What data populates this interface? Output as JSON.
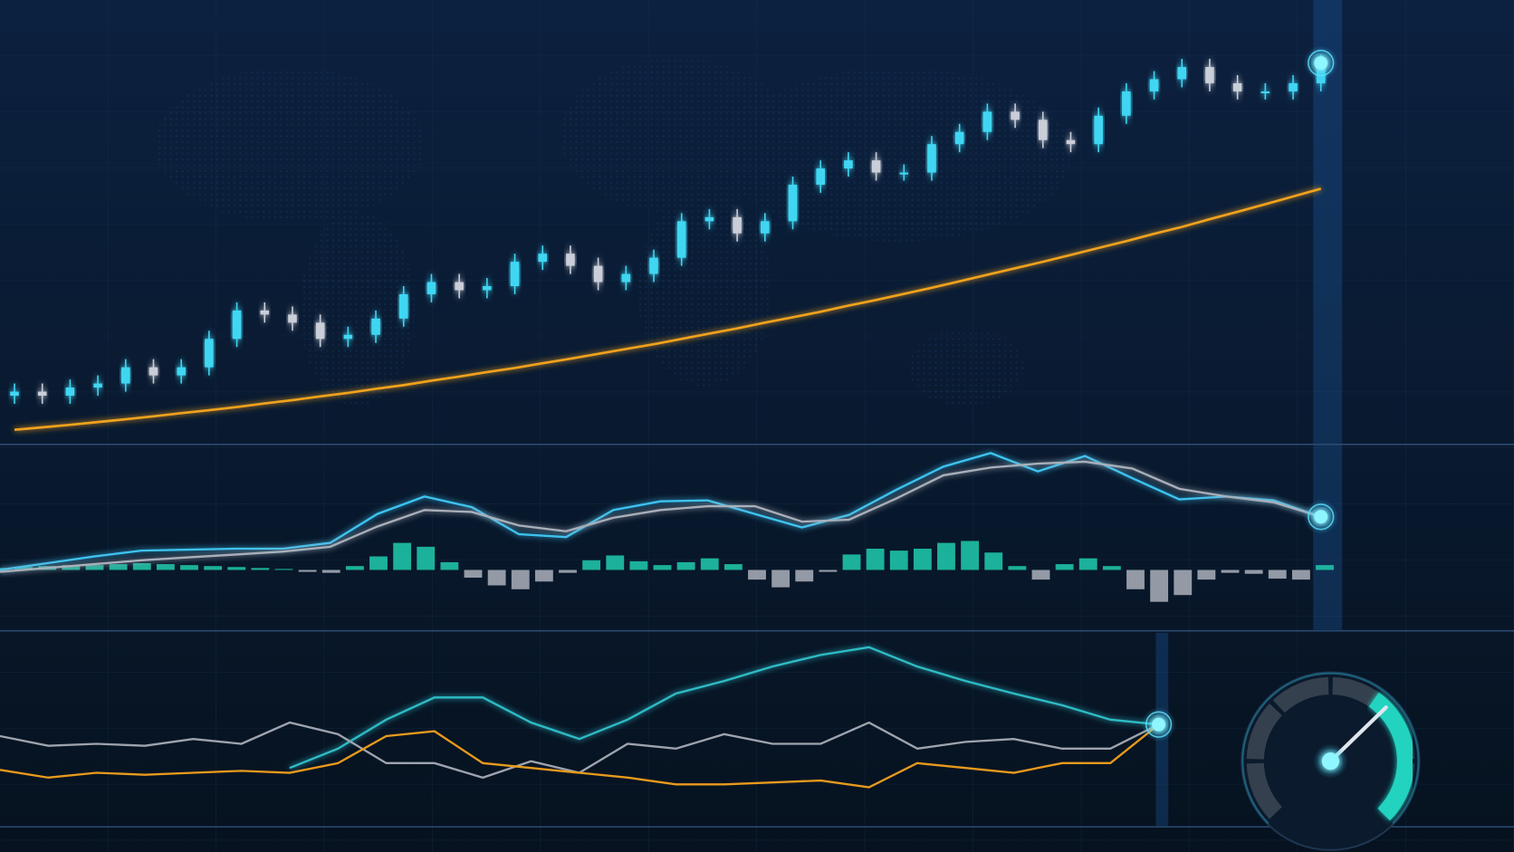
{
  "chart_data": [
    {
      "type": "candlestick",
      "ylim": [
        0,
        100
      ],
      "up_color": "#3fd6f2",
      "down_color": "#c9ced8",
      "open": [
        12,
        13,
        12,
        14,
        15,
        19,
        17,
        19,
        26,
        33,
        32,
        30,
        26,
        27,
        31,
        37,
        40,
        38,
        39,
        45,
        47,
        44,
        40,
        42,
        46,
        55,
        56,
        52,
        55,
        64,
        68,
        70,
        67,
        67,
        74,
        77,
        82,
        80,
        75,
        74,
        81,
        87,
        90,
        93,
        89,
        87,
        87,
        89
      ],
      "high": [
        15,
        15,
        16,
        17,
        21,
        21,
        21,
        28,
        35,
        35,
        34,
        32,
        29,
        33,
        39,
        42,
        42,
        41,
        47,
        49,
        49,
        46,
        44,
        48,
        57,
        58,
        58,
        57,
        66,
        70,
        72,
        72,
        69,
        76,
        79,
        84,
        84,
        82,
        77,
        83,
        89,
        92,
        95,
        95,
        91,
        89,
        91,
        96
      ],
      "low": [
        10,
        10,
        10,
        12,
        13,
        15,
        15,
        17,
        24,
        30,
        28,
        24,
        24,
        25,
        29,
        35,
        36,
        36,
        37,
        43,
        42,
        38,
        38,
        40,
        44,
        53,
        50,
        50,
        53,
        62,
        66,
        65,
        65,
        65,
        72,
        75,
        78,
        73,
        72,
        72,
        79,
        85,
        88,
        87,
        85,
        85,
        85,
        87
      ],
      "close": [
        13,
        12,
        14,
        15,
        19,
        17,
        19,
        26,
        33,
        32,
        30,
        26,
        27,
        31,
        37,
        40,
        38,
        39,
        45,
        47,
        44,
        40,
        42,
        46,
        55,
        56,
        52,
        55,
        64,
        68,
        70,
        67,
        67,
        74,
        77,
        82,
        80,
        75,
        74,
        81,
        87,
        90,
        93,
        89,
        87,
        87,
        89,
        94
      ],
      "moving_average": {
        "color": "#f0a21e",
        "values": [
          3.6,
          4.2,
          4.8,
          5.5,
          6.2,
          6.9,
          7.7,
          8.4,
          9.2,
          10.1,
          10.9,
          11.8,
          12.7,
          13.7,
          14.6,
          15.7,
          16.7,
          17.8,
          18.8,
          20.0,
          21.1,
          22.3,
          23.5,
          24.7,
          26.0,
          27.3,
          28.6,
          30.0,
          31.3,
          32.7,
          34.2,
          35.6,
          37.1,
          38.6,
          40.2,
          41.8,
          43.4,
          45.0,
          46.7,
          48.4,
          50.1,
          51.9,
          53.6,
          55.5,
          57.3,
          59.2,
          61.1,
          63.0
        ]
      }
    },
    {
      "type": "macd",
      "ylim": [
        -62,
        128
      ],
      "series": [
        {
          "color": "#3cc3f0",
          "values": [
            0,
            7,
            14,
            20,
            21,
            22,
            22,
            28,
            58,
            76,
            65,
            37,
            34,
            62,
            71,
            72,
            58,
            44,
            57,
            83,
            107,
            121,
            102,
            118,
            95,
            73,
            76,
            72,
            55
          ]
        },
        {
          "color": "#a9afba",
          "values": [
            -2,
            2,
            6,
            10,
            13,
            16,
            19,
            24,
            45,
            62,
            60,
            46,
            40,
            54,
            62,
            66,
            66,
            50,
            52,
            74,
            98,
            106,
            110,
            112,
            105,
            84,
            76,
            70,
            55
          ]
        }
      ],
      "histogram": {
        "positive_color": "#1fc2a6",
        "negative_color": "#a3a9b3",
        "values": [
          2,
          3,
          4,
          5,
          5,
          6,
          7,
          6,
          5,
          4,
          3,
          2,
          1,
          -2,
          -3,
          4,
          14,
          28,
          24,
          8,
          -8,
          -16,
          -20,
          -12,
          -3,
          10,
          15,
          9,
          5,
          8,
          12,
          6,
          -10,
          -18,
          -12,
          -2,
          16,
          22,
          20,
          22,
          28,
          30,
          18,
          4,
          -10,
          6,
          12,
          4,
          -20,
          -33,
          -26,
          -10,
          -3,
          -4,
          -9,
          -10,
          5
        ]
      }
    },
    {
      "type": "line",
      "ylim": [
        0,
        200
      ],
      "series": [
        {
          "color": "#2fbcc6",
          "values": [
            null,
            null,
            null,
            null,
            null,
            null,
            60,
            80,
            110,
            133,
            133,
            107,
            90,
            110,
            137,
            150,
            165,
            177,
            185,
            165,
            150,
            137,
            125,
            110,
            105
          ]
        },
        {
          "color": "#9ea4ae",
          "values": [
            93,
            83,
            85,
            83,
            90,
            85,
            107,
            95,
            65,
            65,
            50,
            67,
            55,
            85,
            80,
            95,
            85,
            85,
            107,
            80,
            87,
            90,
            80,
            80,
            105
          ]
        },
        {
          "color": "#e89a1c",
          "values": [
            58,
            50,
            55,
            53,
            55,
            57,
            55,
            65,
            93,
            98,
            65,
            60,
            55,
            50,
            43,
            43,
            45,
            47,
            40,
            65,
            60,
            55,
            65,
            65,
            105
          ]
        }
      ]
    },
    {
      "type": "gauge",
      "range": [
        0,
        100
      ],
      "value": 67,
      "color": "#22d3c0"
    }
  ]
}
